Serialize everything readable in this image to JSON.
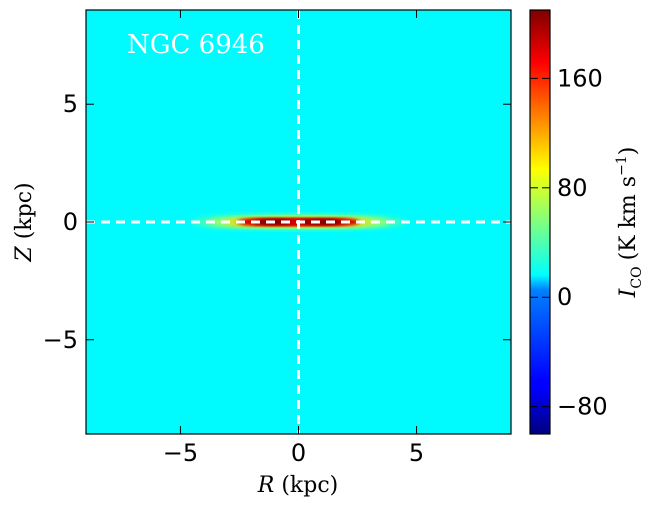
{
  "chart_data": {
    "type": "heatmap",
    "annotation": "NGC 6946",
    "xlabel": {
      "italic": "R",
      "unit": "(kpc)"
    },
    "ylabel": {
      "italic": "Z",
      "unit": "(kpc)"
    },
    "xlim": [
      -9,
      9
    ],
    "ylim": [
      -9,
      9
    ],
    "xticks": [
      -5,
      0,
      5
    ],
    "yticks": [
      -5,
      0,
      5
    ],
    "xtick_labels": [
      "−5",
      "0",
      "5"
    ],
    "ytick_labels": [
      "−5",
      "0",
      "5"
    ],
    "colorbar": {
      "label_symbol": "I",
      "label_sub": "CO",
      "label_unit": "(K km s",
      "label_exp": "−1",
      "label_close": ")",
      "range": [
        -100,
        210
      ],
      "ticks": [
        -80,
        0,
        80,
        160
      ],
      "tick_labels": [
        "−80",
        "0",
        "80",
        "160"
      ],
      "colormap": "jet"
    },
    "background_level": 15,
    "disk": {
      "center_z": 0,
      "peaks": [
        {
          "R": -1.0,
          "Z": 0,
          "value": 210
        },
        {
          "R": 1.0,
          "Z": 0,
          "value": 210
        }
      ],
      "radial_extent_kpc": 4.5,
      "vertical_extent_kpc": 0.35
    },
    "guide_lines": [
      {
        "orientation": "vertical",
        "value": 0,
        "style": "dashed",
        "color": "#ffffff"
      },
      {
        "orientation": "horizontal",
        "value": 0,
        "style": "dashed",
        "color": "#ffffff"
      }
    ]
  }
}
